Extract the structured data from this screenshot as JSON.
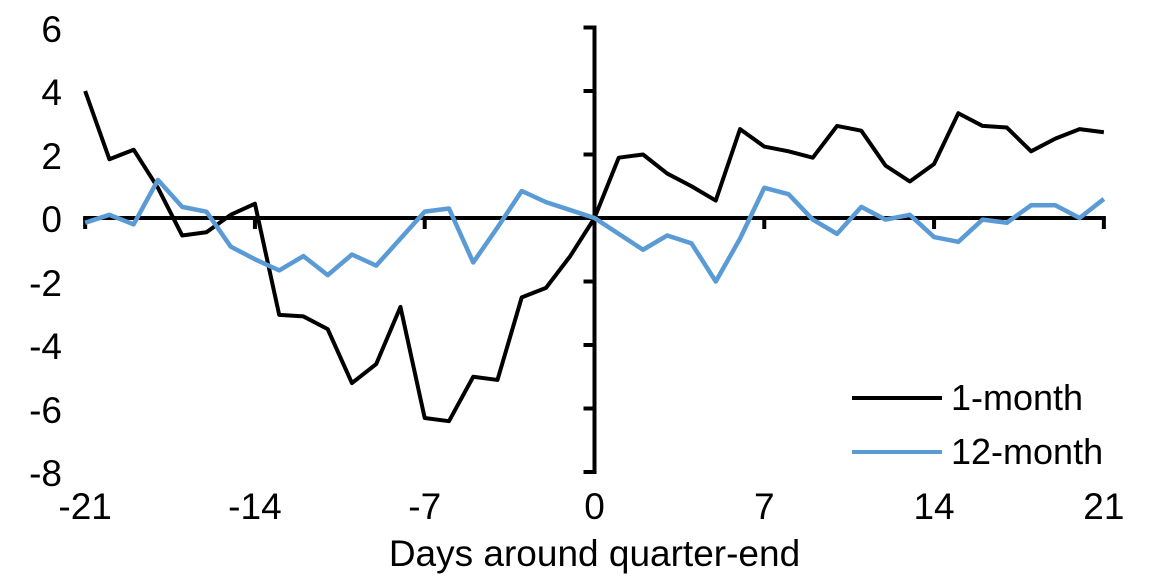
{
  "chart_data": {
    "type": "line",
    "title": "",
    "xlabel": "Days around quarter-end",
    "ylabel": "",
    "xlim": [
      -21,
      21
    ],
    "ylim": [
      -8,
      6
    ],
    "x_ticks": [
      -21,
      -14,
      -7,
      0,
      7,
      14,
      21
    ],
    "y_ticks": [
      6,
      4,
      2,
      0,
      -2,
      -4,
      -6,
      -8
    ],
    "grid": false,
    "legend_position": "inside-bottom-right",
    "axis_color": "#000000",
    "background_color": "#ffffff",
    "x": [
      -21,
      -20,
      -19,
      -18,
      -17,
      -16,
      -15,
      -14,
      -13,
      -12,
      -11,
      -10,
      -9,
      -8,
      -7,
      -6,
      -5,
      -4,
      -3,
      -2,
      -1,
      0,
      1,
      2,
      3,
      4,
      5,
      6,
      7,
      8,
      9,
      10,
      11,
      12,
      13,
      14,
      15,
      16,
      17,
      18,
      19,
      20,
      21
    ],
    "series": [
      {
        "name": "1-month",
        "color": "#000000",
        "stroke_width": 4,
        "values": [
          4.0,
          1.85,
          2.15,
          0.95,
          -0.55,
          -0.45,
          0.1,
          0.45,
          -3.05,
          -3.1,
          -3.5,
          -5.2,
          -4.6,
          -2.8,
          -6.3,
          -6.4,
          -5.0,
          -5.1,
          -2.5,
          -2.2,
          -1.2,
          0.0,
          1.9,
          2.0,
          1.4,
          1.0,
          0.55,
          2.8,
          2.25,
          2.1,
          1.9,
          2.9,
          2.75,
          1.65,
          1.15,
          1.7,
          3.3,
          2.9,
          2.85,
          2.1,
          2.5,
          2.8,
          2.7
        ]
      },
      {
        "name": "12-month",
        "color": "#5B9BD5",
        "stroke_width": 4.5,
        "values": [
          -0.15,
          0.1,
          -0.2,
          1.2,
          0.35,
          0.2,
          -0.9,
          -1.3,
          -1.65,
          -1.2,
          -1.8,
          -1.15,
          -1.5,
          -0.65,
          0.2,
          0.3,
          -1.4,
          -0.3,
          0.85,
          0.5,
          0.25,
          0.0,
          -0.5,
          -1.0,
          -0.55,
          -0.8,
          -2.0,
          -0.65,
          0.95,
          0.75,
          -0.05,
          -0.5,
          0.35,
          -0.05,
          0.1,
          -0.6,
          -0.75,
          -0.05,
          -0.15,
          0.4,
          0.4,
          0.0,
          0.6
        ]
      }
    ]
  }
}
